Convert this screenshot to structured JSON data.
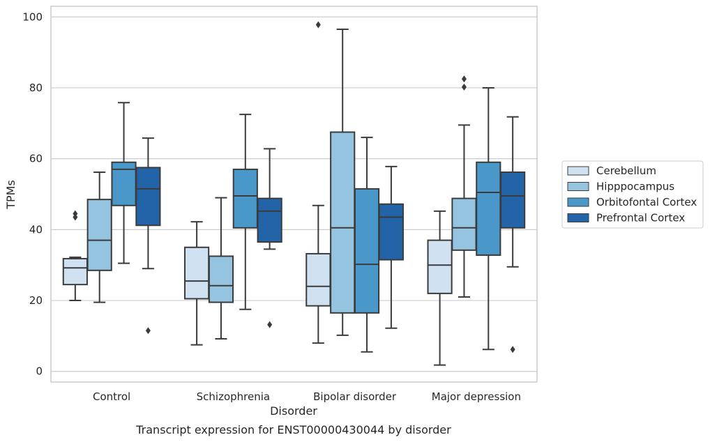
{
  "chart_data": {
    "type": "box",
    "title": "",
    "caption": "Transcript expression for ENST00000430044 by disorder",
    "xlabel": "Disorder",
    "ylabel": "TPMs",
    "ylim": [
      -3,
      103
    ],
    "yticks": [
      0,
      20,
      40,
      60,
      80,
      100
    ],
    "grid": true,
    "legend_position": "right",
    "categories": [
      "Control",
      "Schizophrenia",
      "Bipolar disorder",
      "Major depression"
    ],
    "series": [
      {
        "name": "Cerebellum",
        "color": "#d0e1f2",
        "boxes": [
          {
            "whislo": 20,
            "q1": 24.5,
            "med": 29.2,
            "q3": 31.8,
            "whishi": 32.2,
            "fliers": [
              43.5,
              44.5
            ]
          },
          {
            "whislo": 7.5,
            "q1": 20.5,
            "med": 25.5,
            "q3": 35,
            "whishi": 42.2,
            "fliers": []
          },
          {
            "whislo": 8,
            "q1": 18.5,
            "med": 24,
            "q3": 33.2,
            "whishi": 46.8,
            "fliers": [
              97.8
            ]
          },
          {
            "whislo": 1.8,
            "q1": 22,
            "med": 30,
            "q3": 37,
            "whishi": 45.2,
            "fliers": []
          }
        ]
      },
      {
        "name": "Hipppocampus",
        "color": "#94c4df",
        "boxes": [
          {
            "whislo": 19.5,
            "q1": 28.5,
            "med": 37,
            "q3": 48.5,
            "whishi": 56.2,
            "fliers": []
          },
          {
            "whislo": 9.2,
            "q1": 19.5,
            "med": 24.2,
            "q3": 32.5,
            "whishi": 49,
            "fliers": []
          },
          {
            "whislo": 10.2,
            "q1": 16.5,
            "med": 40.5,
            "q3": 67.5,
            "whishi": 96.5,
            "fliers": []
          },
          {
            "whislo": 21,
            "q1": 34.2,
            "med": 40.5,
            "q3": 48.8,
            "whishi": 69.5,
            "fliers": [
              80.2,
              82.5
            ]
          }
        ]
      },
      {
        "name": "Orbitofontal Cortex",
        "color": "#4a98c9",
        "boxes": [
          {
            "whislo": 30.5,
            "q1": 46.8,
            "med": 57,
            "q3": 59,
            "whishi": 75.8,
            "fliers": []
          },
          {
            "whislo": 17.5,
            "q1": 40.5,
            "med": 49.5,
            "q3": 57,
            "whishi": 72.5,
            "fliers": []
          },
          {
            "whislo": 5.5,
            "q1": 16.5,
            "med": 30.2,
            "q3": 51.5,
            "whishi": 66,
            "fliers": []
          },
          {
            "whislo": 6.2,
            "q1": 32.8,
            "med": 50.5,
            "q3": 59,
            "whishi": 80,
            "fliers": []
          }
        ]
      },
      {
        "name": "Prefrontal Cortex",
        "color": "#2363a8",
        "boxes": [
          {
            "whislo": 29,
            "q1": 41.2,
            "med": 51.5,
            "q3": 57.5,
            "whishi": 65.8,
            "fliers": [
              11.5
            ]
          },
          {
            "whislo": 34.5,
            "q1": 36.5,
            "med": 45.2,
            "q3": 48.8,
            "whishi": 62.8,
            "fliers": [
              13.2
            ]
          },
          {
            "whislo": 12.2,
            "q1": 31.5,
            "med": 43.5,
            "q3": 47.2,
            "whishi": 57.8,
            "fliers": []
          },
          {
            "whislo": 29.5,
            "q1": 40.5,
            "med": 49.5,
            "q3": 56.2,
            "whishi": 71.8,
            "fliers": [
              6.2
            ]
          }
        ]
      }
    ]
  }
}
